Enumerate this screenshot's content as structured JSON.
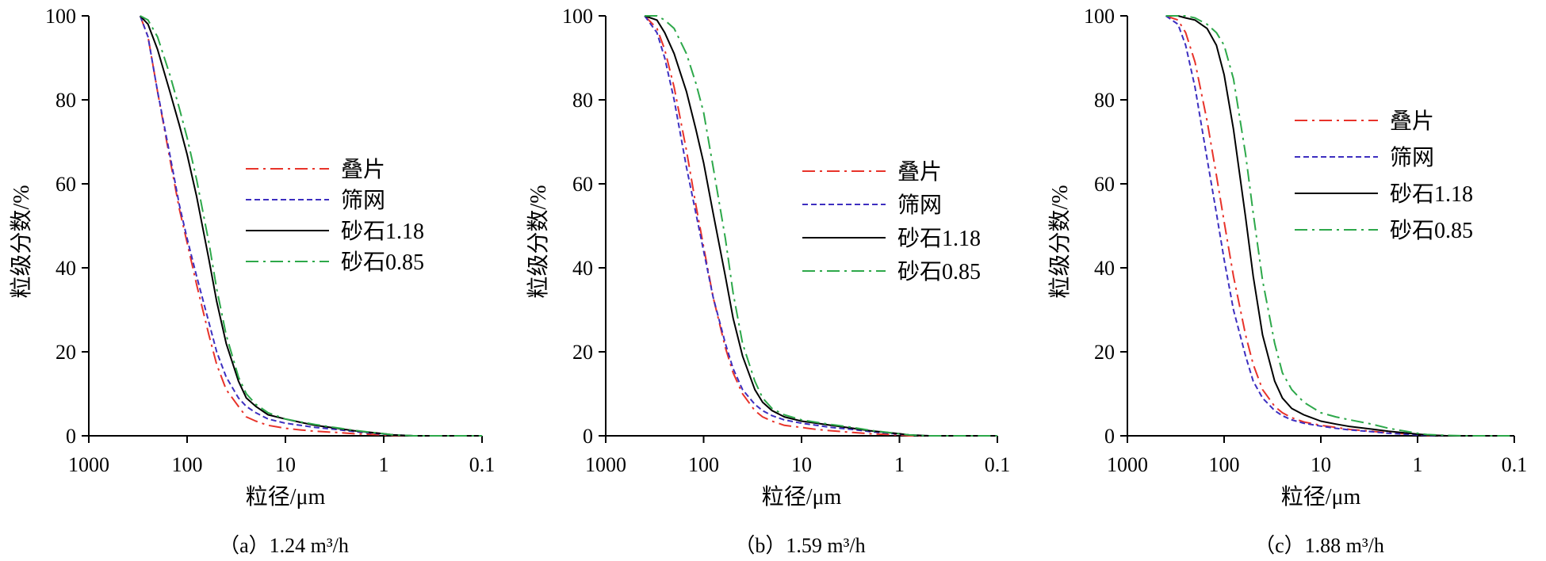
{
  "chart_data": [
    {
      "type": "line",
      "caption": "（a）1.24 m³/h",
      "xlabel": "粒径/μm",
      "ylabel": "粒级分数/%",
      "xscale": "log",
      "x_reversed": true,
      "xlim": [
        1000,
        0.1
      ],
      "xticks": [
        "1000",
        "100",
        "10",
        "1",
        "0.1"
      ],
      "ylim": [
        0,
        100
      ],
      "yticks": [
        "0",
        "20",
        "40",
        "60",
        "80",
        "100"
      ],
      "legend_position": "center-right",
      "series": [
        {
          "name": "叠片",
          "color": "#e8332a",
          "dash": "dash-dot",
          "x": [
            300,
            250,
            200,
            150,
            120,
            100,
            80,
            60,
            50,
            40,
            30,
            25,
            20,
            15,
            10,
            7,
            5,
            3,
            2,
            1,
            0.8,
            0.5,
            0.3,
            0.2,
            0.1
          ],
          "y": [
            100,
            95,
            82,
            66,
            54,
            46,
            36,
            24,
            17,
            11,
            7,
            4.5,
            3.5,
            2.5,
            1.8,
            1.4,
            1.1,
            0.8,
            0.5,
            0.2,
            0.1,
            0,
            0,
            0,
            0
          ]
        },
        {
          "name": "筛网",
          "color": "#3d2fc0",
          "dash": "dashed",
          "x": [
            300,
            250,
            200,
            150,
            120,
            100,
            80,
            60,
            50,
            40,
            30,
            25,
            20,
            15,
            10,
            7,
            5,
            3,
            2,
            1,
            0.8,
            0.5,
            0.3,
            0.2,
            0.1
          ],
          "y": [
            100,
            95,
            82,
            67,
            55,
            47,
            38,
            27,
            20,
            14,
            9,
            7,
            5.5,
            4,
            3,
            2.5,
            2,
            1.5,
            1,
            0.4,
            0.2,
            0,
            0,
            0,
            0
          ]
        },
        {
          "name": "砂石1.18",
          "color": "#000000",
          "dash": "solid",
          "x": [
            300,
            250,
            200,
            150,
            120,
            100,
            80,
            60,
            50,
            40,
            30,
            25,
            20,
            15,
            10,
            7,
            5,
            3,
            2,
            1,
            0.8,
            0.5,
            0.3,
            0.2,
            0.1
          ],
          "y": [
            100,
            98,
            92,
            82,
            74,
            67,
            57,
            42,
            32,
            22,
            13,
            9,
            7,
            5,
            4,
            3.2,
            2.5,
            1.8,
            1.2,
            0.5,
            0.2,
            0,
            0,
            0,
            0
          ]
        },
        {
          "name": "砂石0.85",
          "color": "#2da84a",
          "dash": "dash-dot",
          "x": [
            300,
            250,
            200,
            150,
            120,
            100,
            80,
            60,
            50,
            40,
            30,
            25,
            20,
            15,
            10,
            7,
            5,
            3,
            2,
            1,
            0.8,
            0.5,
            0.3,
            0.2,
            0.1
          ],
          "y": [
            100,
            99,
            95,
            86,
            78,
            71,
            61,
            46,
            35,
            24,
            14,
            10,
            7.5,
            5.5,
            4,
            3.3,
            2.7,
            1.9,
            1.3,
            0.5,
            0.2,
            0,
            0,
            0,
            0
          ]
        }
      ]
    },
    {
      "type": "line",
      "caption": "（b）1.59 m³/h",
      "xlabel": "粒径/μm",
      "ylabel": "粒级分数/%",
      "xscale": "log",
      "x_reversed": true,
      "xlim": [
        1000,
        0.1
      ],
      "xticks": [
        "1000",
        "100",
        "10",
        "1",
        "0.1"
      ],
      "ylim": [
        0,
        100
      ],
      "yticks": [
        "0",
        "20",
        "40",
        "60",
        "80",
        "100"
      ],
      "legend_position": "center-right",
      "series": [
        {
          "name": "叠片",
          "color": "#e8332a",
          "dash": "dash-dot",
          "x": [
            400,
            300,
            250,
            200,
            150,
            120,
            100,
            80,
            60,
            50,
            40,
            30,
            25,
            20,
            15,
            10,
            7,
            5,
            3,
            2,
            1,
            0.8,
            0.5,
            0.3,
            0.1
          ],
          "y": [
            100,
            97,
            92,
            83,
            68,
            55,
            45,
            33,
            21,
            15,
            10,
            6,
            4.5,
            3.5,
            2.5,
            2,
            1.5,
            1.2,
            0.8,
            0.5,
            0.2,
            0,
            0,
            0,
            0
          ]
        },
        {
          "name": "筛网",
          "color": "#3d2fc0",
          "dash": "dashed",
          "x": [
            400,
            300,
            250,
            200,
            150,
            120,
            100,
            80,
            60,
            50,
            40,
            30,
            25,
            20,
            15,
            10,
            7,
            5,
            3,
            2,
            1,
            0.8,
            0.5,
            0.3,
            0.1
          ],
          "y": [
            100,
            96,
            90,
            80,
            64,
            53,
            44,
            33,
            22,
            16,
            11,
            7.5,
            6,
            4.8,
            3.8,
            3,
            2.5,
            2,
            1.5,
            1,
            0.4,
            0.2,
            0,
            0,
            0
          ]
        },
        {
          "name": "砂石1.18",
          "color": "#000000",
          "dash": "solid",
          "x": [
            400,
            300,
            250,
            200,
            150,
            120,
            100,
            80,
            60,
            50,
            40,
            30,
            25,
            20,
            15,
            10,
            7,
            5,
            3,
            2,
            1,
            0.8,
            0.5,
            0.3,
            0.1
          ],
          "y": [
            100,
            99,
            96,
            91,
            82,
            73,
            65,
            53,
            38,
            28,
            19,
            11,
            8,
            6,
            4.5,
            3.5,
            3,
            2.5,
            1.8,
            1.2,
            0.5,
            0.2,
            0,
            0,
            0
          ]
        },
        {
          "name": "砂石0.85",
          "color": "#2da84a",
          "dash": "dash-dot",
          "x": [
            400,
            300,
            250,
            200,
            150,
            120,
            100,
            80,
            60,
            50,
            40,
            30,
            25,
            20,
            15,
            10,
            7,
            5,
            3,
            2,
            1,
            0.8,
            0.5,
            0.3,
            0.1
          ],
          "y": [
            100,
            100,
            99,
            97,
            91,
            84,
            77,
            64,
            47,
            34,
            22,
            13,
            9,
            6.5,
            5,
            3.8,
            3.2,
            2.7,
            2,
            1.3,
            0.5,
            0.2,
            0,
            0,
            0
          ]
        }
      ]
    },
    {
      "type": "line",
      "caption": "（c）1.88 m³/h",
      "xlabel": "粒径/μm",
      "ylabel": "粒级分数/%",
      "xscale": "log",
      "x_reversed": true,
      "xlim": [
        1000,
        0.1
      ],
      "xticks": [
        "1000",
        "100",
        "10",
        "1",
        "0.1"
      ],
      "ylim": [
        0,
        100
      ],
      "yticks": [
        "0",
        "20",
        "40",
        "60",
        "80",
        "100"
      ],
      "legend_position": "top-right",
      "series": [
        {
          "name": "叠片",
          "color": "#e8332a",
          "dash": "dash-dot",
          "x": [
            400,
            300,
            250,
            200,
            150,
            120,
            100,
            80,
            60,
            50,
            40,
            30,
            25,
            20,
            15,
            10,
            7,
            5,
            3,
            2,
            1,
            0.8,
            0.5,
            0.3,
            0.1
          ],
          "y": [
            100,
            99,
            96,
            89,
            75,
            62,
            51,
            38,
            24,
            17,
            11,
            7,
            5.5,
            4.3,
            3.3,
            2.5,
            2,
            1.5,
            1.1,
            0.7,
            0.3,
            0.1,
            0,
            0,
            0
          ]
        },
        {
          "name": "筛网",
          "color": "#3d2fc0",
          "dash": "dashed",
          "x": [
            400,
            300,
            250,
            200,
            150,
            120,
            100,
            80,
            60,
            50,
            40,
            30,
            25,
            20,
            15,
            10,
            7,
            5,
            3,
            2,
            1,
            0.8,
            0.5,
            0.3,
            0.1
          ],
          "y": [
            100,
            98,
            93,
            83,
            66,
            53,
            42,
            30,
            19,
            13,
            9,
            6,
            4.8,
            3.8,
            3,
            2.3,
            1.8,
            1.4,
            1,
            0.6,
            0.2,
            0.1,
            0,
            0,
            0
          ]
        },
        {
          "name": "砂石1.18",
          "color": "#000000",
          "dash": "solid",
          "x": [
            400,
            300,
            250,
            200,
            150,
            120,
            100,
            80,
            60,
            50,
            40,
            30,
            25,
            20,
            15,
            10,
            7,
            5,
            3,
            2,
            1,
            0.8,
            0.5,
            0.3,
            0.1
          ],
          "y": [
            100,
            100,
            99.5,
            99,
            97,
            93,
            86,
            73,
            52,
            38,
            24,
            13,
            9,
            6.5,
            5,
            3.5,
            2.8,
            2.2,
            1.6,
            1.1,
            0.4,
            0.2,
            0,
            0,
            0
          ]
        },
        {
          "name": "砂石0.85",
          "color": "#2da84a",
          "dash": "dash-dot",
          "x": [
            400,
            300,
            250,
            200,
            150,
            120,
            100,
            80,
            60,
            50,
            40,
            30,
            25,
            20,
            15,
            10,
            7,
            5,
            3,
            2,
            1,
            0.8,
            0.5,
            0.3,
            0.1
          ],
          "y": [
            100,
            100,
            100,
            99.5,
            98,
            96,
            93,
            85,
            67,
            53,
            37,
            22,
            15,
            11,
            8,
            5.5,
            4.5,
            3.8,
            2.8,
            1.8,
            0.6,
            0.3,
            0.1,
            0,
            0
          ]
        }
      ]
    }
  ]
}
